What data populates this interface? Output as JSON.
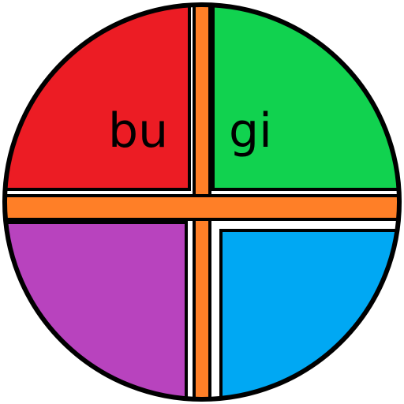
{
  "quadrants": {
    "top_left": {
      "color": "#EC1C24"
    },
    "top_right": {
      "color": "#11D24F"
    },
    "bottom_left": {
      "color": "#B843BE"
    },
    "bottom_right": {
      "color": "#00A8F3"
    }
  },
  "cross": {
    "color": "#FF7F27"
  },
  "outline": {
    "color": "#000000"
  },
  "labels": {
    "top_left": "bu",
    "top_right": "gi"
  }
}
